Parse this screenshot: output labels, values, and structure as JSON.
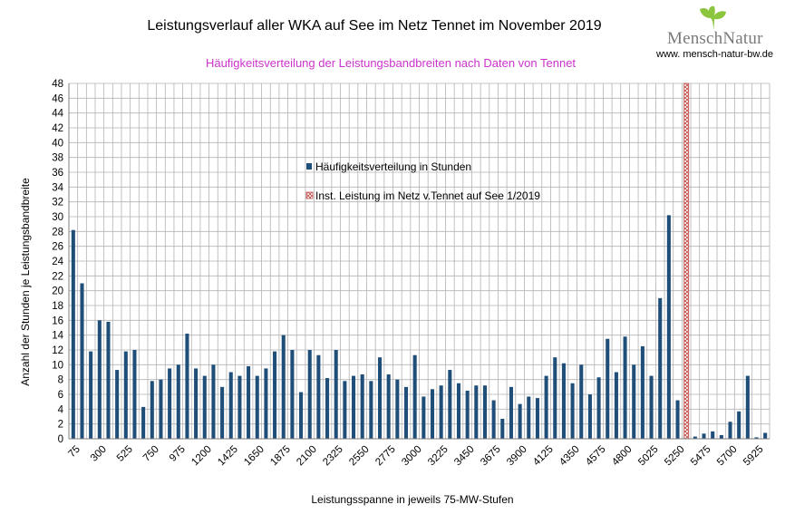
{
  "logo": {
    "name": "MenschNatur",
    "url": "www. mensch-natur-bw.de"
  },
  "colors": {
    "bar": "#1f4e79",
    "subtitle": "#cc33cc",
    "marker": "#c0504d",
    "grid": "#b3b3b3"
  },
  "chart_data": {
    "type": "bar",
    "title": "Leistungsverlauf aller WKA auf See im Netz Tennet im November 2019",
    "subtitle": "Häufigkeitsverteilung der Leistungsbandbreiten nach Daten von Tennet",
    "xlabel": "Leistungsspanne in jeweils 75-MW-Stufen",
    "ylabel": "Anzahl der Stunden je Leistungsbandbreite",
    "ylim": [
      0,
      48
    ],
    "ytick_step": 2,
    "grid": true,
    "x_start": 75,
    "x_step": 75,
    "x_tick_labels": [
      "75",
      "300",
      "525",
      "750",
      "975",
      "1200",
      "1425",
      "1650",
      "1875",
      "2100",
      "2325",
      "2550",
      "2775",
      "3000",
      "3225",
      "3450",
      "3675",
      "3900",
      "4125",
      "4350",
      "4575",
      "4800",
      "5025",
      "5250",
      "5475",
      "5700",
      "5925"
    ],
    "x_tick_every": 3,
    "legend": [
      {
        "label": "Häufigkeitsverteilung in Stunden",
        "marker": "bar"
      },
      {
        "label": "Inst. Leistung im Netz v.Tennet auf See 1/2019",
        "marker": "hatched"
      }
    ],
    "series": [
      {
        "name": "Häufigkeitsverteilung in Stunden",
        "values": [
          28.2,
          21,
          11.8,
          16,
          15.8,
          9.3,
          11.8,
          12,
          4.3,
          7.8,
          8,
          9.5,
          10,
          14.2,
          9.5,
          8.5,
          10,
          7,
          9,
          8.5,
          9.8,
          8.5,
          9.5,
          11.8,
          14,
          12,
          6.3,
          12,
          11.3,
          8.2,
          12,
          7.8,
          8.5,
          8.7,
          7.8,
          11,
          8.7,
          8,
          7,
          11.3,
          5.7,
          6.7,
          7.2,
          9.3,
          7.5,
          6.5,
          7.2,
          7.2,
          5.2,
          2.7,
          7,
          4.7,
          5.7,
          5.5,
          8.5,
          11,
          10.2,
          7.5,
          10,
          6,
          8.3,
          13.5,
          9,
          13.8,
          10,
          12.5,
          8.5,
          19,
          30.2,
          5.2,
          0.3,
          0.3,
          0.7,
          1,
          0.5,
          2.3,
          3.7,
          8.5,
          0.2,
          0.8
        ]
      },
      {
        "name": "Inst. Leistung im Netz v.Tennet auf See 1/2019",
        "installed_index": 70,
        "value": 48
      }
    ]
  }
}
